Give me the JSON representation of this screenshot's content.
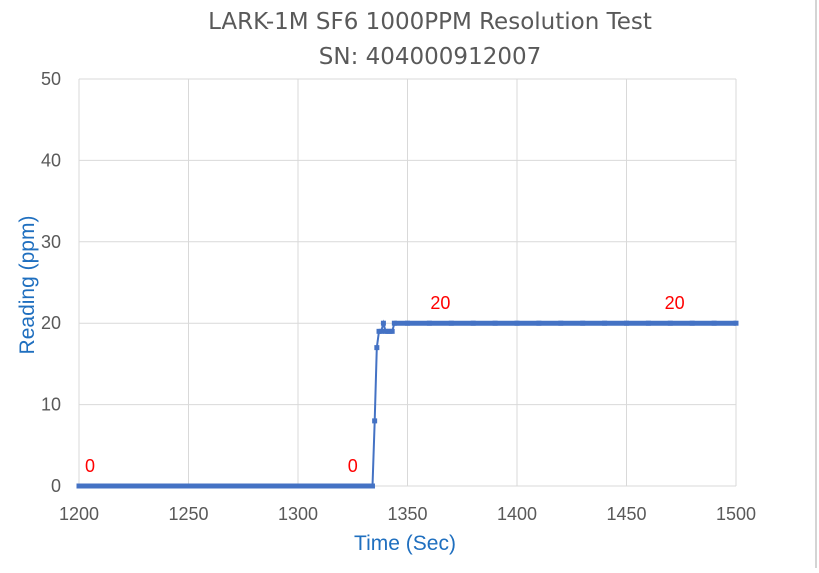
{
  "chart_data": {
    "type": "line",
    "title": "LARK-1M SF6 1000PPM Resolution Test",
    "subtitle": "SN: 404000912007",
    "xlabel": "Time (Sec)",
    "ylabel": "Reading (ppm)",
    "xlim": [
      1200,
      1500
    ],
    "ylim": [
      0,
      50
    ],
    "x_ticks": [
      1200,
      1250,
      1300,
      1350,
      1400,
      1450,
      1500
    ],
    "y_ticks": [
      0,
      10,
      20,
      30,
      40,
      50
    ],
    "grid": true,
    "legend": "none",
    "colors": {
      "series": "#4472c4",
      "labels": "#ff0000",
      "axis_title": "#1f6fbf",
      "grid": "#d9d9d9",
      "text": "#595959"
    },
    "series": [
      {
        "points": [
          [
            1200,
            0
          ],
          [
            1210,
            0
          ],
          [
            1220,
            0
          ],
          [
            1230,
            0
          ],
          [
            1240,
            0
          ],
          [
            1250,
            0
          ],
          [
            1260,
            0
          ],
          [
            1270,
            0
          ],
          [
            1280,
            0
          ],
          [
            1290,
            0
          ],
          [
            1300,
            0
          ],
          [
            1310,
            0
          ],
          [
            1320,
            0
          ],
          [
            1330,
            0
          ],
          [
            1334,
            0
          ],
          [
            1335,
            8
          ],
          [
            1336,
            17
          ],
          [
            1337,
            19
          ],
          [
            1338,
            19
          ],
          [
            1339,
            20
          ],
          [
            1340,
            19
          ],
          [
            1341,
            19
          ],
          [
            1342,
            19
          ],
          [
            1343,
            19
          ],
          [
            1344,
            20
          ],
          [
            1350,
            20
          ],
          [
            1360,
            20
          ],
          [
            1370,
            20
          ],
          [
            1380,
            20
          ],
          [
            1390,
            20
          ],
          [
            1400,
            20
          ],
          [
            1410,
            20
          ],
          [
            1420,
            20
          ],
          [
            1430,
            20
          ],
          [
            1440,
            20
          ],
          [
            1450,
            20
          ],
          [
            1460,
            20
          ],
          [
            1470,
            20
          ],
          [
            1480,
            20
          ],
          [
            1490,
            20
          ],
          [
            1500,
            20
          ]
        ]
      }
    ],
    "data_labels": [
      {
        "x": 1205,
        "y": 0,
        "text": "0"
      },
      {
        "x": 1325,
        "y": 0,
        "text": "0"
      },
      {
        "x": 1365,
        "y": 20,
        "text": "20"
      },
      {
        "x": 1472,
        "y": 20,
        "text": "20"
      }
    ]
  }
}
